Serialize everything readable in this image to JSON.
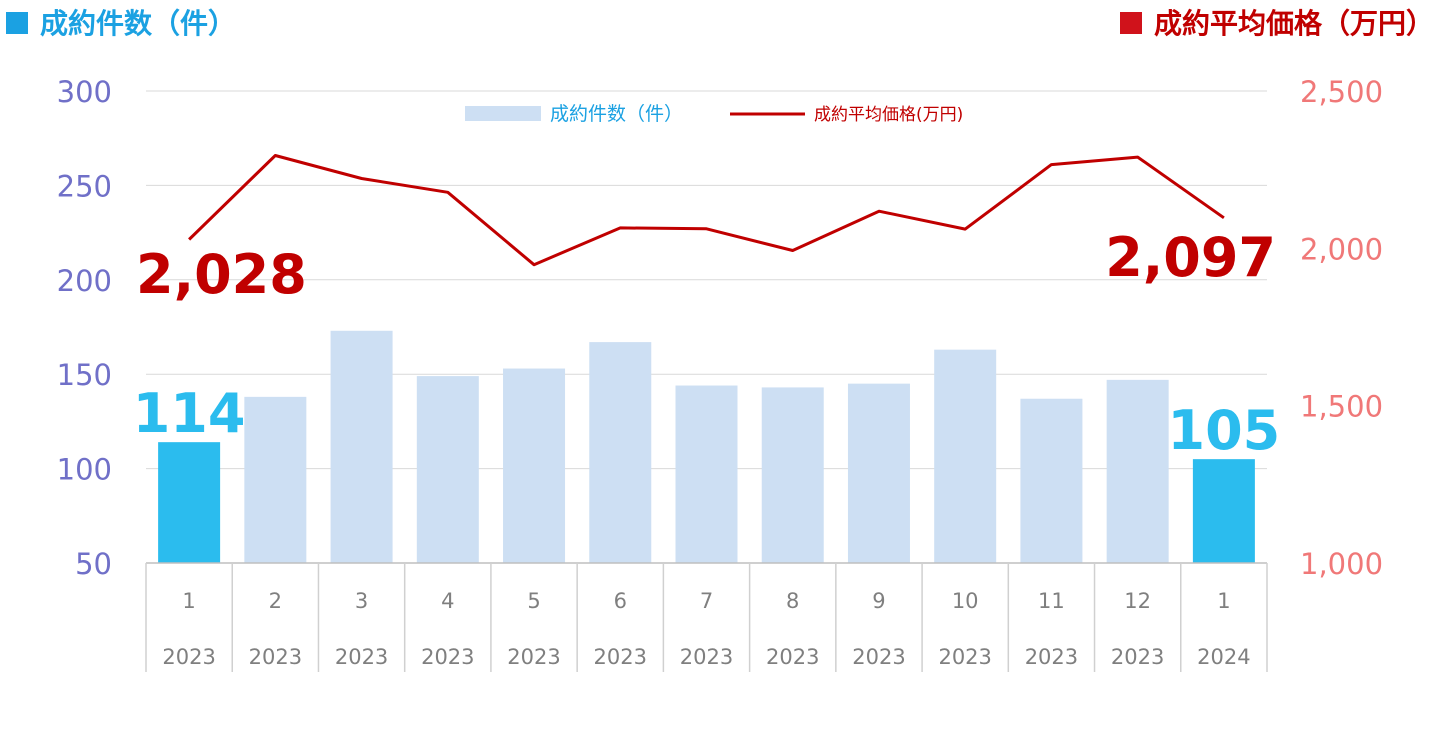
{
  "headers": {
    "left": "成約件数（件）",
    "right": "成約平均価格（万円）"
  },
  "legend": {
    "bar_label": "成約件数（件）",
    "line_label": "成約平均価格(万円)"
  },
  "colors": {
    "bar_light": "#cddff3",
    "bar_highlight": "#2bbcee",
    "line": "#c00000",
    "left_axis_text": "#7070c8",
    "right_axis_text": "#f07878",
    "category_text": "#7f7f7f",
    "header_left": "#1ba1e2",
    "header_right": "#c00000"
  },
  "chart_data": {
    "type": "bar",
    "categories": [
      {
        "month": "1",
        "year": "2023"
      },
      {
        "month": "2",
        "year": "2023"
      },
      {
        "month": "3",
        "year": "2023"
      },
      {
        "month": "4",
        "year": "2023"
      },
      {
        "month": "5",
        "year": "2023"
      },
      {
        "month": "6",
        "year": "2023"
      },
      {
        "month": "7",
        "year": "2023"
      },
      {
        "month": "8",
        "year": "2023"
      },
      {
        "month": "9",
        "year": "2023"
      },
      {
        "month": "10",
        "year": "2023"
      },
      {
        "month": "11",
        "year": "2023"
      },
      {
        "month": "12",
        "year": "2023"
      },
      {
        "month": "1",
        "year": "2024"
      }
    ],
    "series": [
      {
        "name": "成約件数（件）",
        "type": "bar",
        "axis": "left",
        "values": [
          114,
          138,
          173,
          149,
          153,
          167,
          144,
          143,
          145,
          163,
          137,
          147,
          105
        ],
        "highlight_indices": [
          0,
          12
        ]
      },
      {
        "name": "成約平均価格(万円)",
        "type": "line",
        "axis": "right",
        "values": [
          2028,
          2295,
          2222,
          2178,
          1948,
          2065,
          2062,
          1993,
          2118,
          2061,
          2266,
          2290,
          2097
        ]
      }
    ],
    "y_left": {
      "min": 50,
      "max": 300,
      "ticks": [
        "50",
        "100",
        "150",
        "200",
        "250",
        "300"
      ]
    },
    "y_right": {
      "min": 1000,
      "max": 2500,
      "ticks": [
        "1,000",
        "1,500",
        "2,000",
        "2,500"
      ]
    },
    "grid": true,
    "legend_position": "top-center",
    "annotations": {
      "bar_first": "114",
      "bar_last": "105",
      "line_first": "2,028",
      "line_last": "2,097"
    }
  }
}
